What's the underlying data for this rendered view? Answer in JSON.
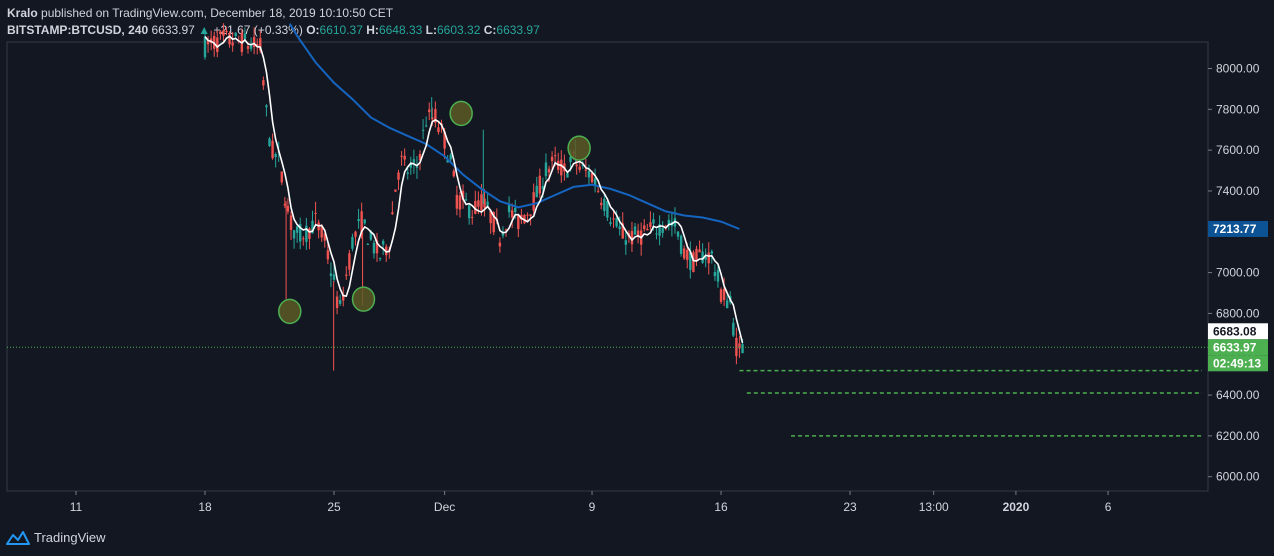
{
  "header": {
    "author": "Kralo",
    "published_text": "published on TradingView.com, December 18, 2019 10:10:50 CET",
    "symbol": "BITSTAMP:BTCUSD, 240",
    "last": "6633.97",
    "change_arrow": "▲",
    "change": "+21.67 (+0.33%)",
    "o_label": "O:",
    "o_value": "6610.37",
    "h_label": "H:",
    "h_value": "6648.33",
    "l_label": "L:",
    "l_value": "6603.32",
    "c_label": "C:",
    "c_value": "6633.97"
  },
  "footer": {
    "brand": "TradingView"
  },
  "colors": {
    "background": "#131722",
    "up": "#26a69a",
    "down": "#ef5350",
    "ma_fast": "#ffffff",
    "ma_slow": "#1565c0",
    "marker": "#4caf50",
    "last_price_bg": "#4caf50",
    "ma_badge_bg": "#0b5394"
  },
  "chart_data": {
    "type": "candlestick",
    "interval": "240",
    "ylim": [
      5950,
      8220
    ],
    "y_ticks": [
      "6000.00",
      "6200.00",
      "6400.00",
      "6600.00",
      "6800.00",
      "7000.00",
      "7200.00",
      "7400.00",
      "7600.00",
      "7800.00",
      "8000.00"
    ],
    "x_labels": [
      {
        "label": "11",
        "day": 3
      },
      {
        "label": "18",
        "day": 10
      },
      {
        "label": "25",
        "day": 17
      },
      {
        "label": "Dec",
        "day": 23
      },
      {
        "label": "9",
        "day": 31
      },
      {
        "label": "16",
        "day": 38
      },
      {
        "label": "23",
        "day": 45
      },
      {
        "label": "13:00",
        "day": 49.54
      },
      {
        "label": "2020",
        "day": 54
      },
      {
        "label": "6",
        "day": 59
      }
    ],
    "price_badges": [
      {
        "id": "ma-fast",
        "text": "6683.08",
        "price": 6683.08
      },
      {
        "id": "last",
        "text": "6633.97",
        "price": 6633.97
      },
      {
        "id": "countdown",
        "text": "02:49:13"
      },
      {
        "id": "ma-slow",
        "text": "7213.77",
        "price": 7213.77
      }
    ],
    "last_price": 6633.97,
    "anchors": [
      {
        "day": 10.0,
        "price": 8110
      },
      {
        "day": 11.0,
        "price": 8140
      },
      {
        "day": 12.0,
        "price": 8130
      },
      {
        "day": 13.0,
        "price": 8100
      },
      {
        "day": 13.3,
        "price": 7800
      },
      {
        "day": 13.6,
        "price": 7600
      },
      {
        "day": 14.0,
        "price": 7550
      },
      {
        "day": 14.3,
        "price": 7400
      },
      {
        "day": 14.6,
        "price": 7250
      },
      {
        "day": 15.0,
        "price": 7180
      },
      {
        "day": 15.5,
        "price": 7200
      },
      {
        "day": 16.0,
        "price": 7250
      },
      {
        "day": 16.5,
        "price": 7150
      },
      {
        "day": 17.0,
        "price": 6950
      },
      {
        "day": 17.3,
        "price": 6800
      },
      {
        "day": 17.6,
        "price": 6950
      },
      {
        "day": 18.0,
        "price": 7150
      },
      {
        "day": 18.5,
        "price": 7250
      },
      {
        "day": 19.0,
        "price": 7150
      },
      {
        "day": 19.5,
        "price": 7080
      },
      {
        "day": 20.0,
        "price": 7150
      },
      {
        "day": 20.3,
        "price": 7400
      },
      {
        "day": 20.6,
        "price": 7550
      },
      {
        "day": 21.0,
        "price": 7500
      },
      {
        "day": 21.5,
        "price": 7520
      },
      {
        "day": 22.0,
        "price": 7750
      },
      {
        "day": 22.5,
        "price": 7760
      },
      {
        "day": 23.0,
        "price": 7650
      },
      {
        "day": 23.3,
        "price": 7550
      },
      {
        "day": 23.7,
        "price": 7350
      },
      {
        "day": 24.0,
        "price": 7350
      },
      {
        "day": 24.5,
        "price": 7300
      },
      {
        "day": 25.0,
        "price": 7350
      },
      {
        "day": 25.5,
        "price": 7280
      },
      {
        "day": 26.0,
        "price": 7180
      },
      {
        "day": 26.5,
        "price": 7300
      },
      {
        "day": 27.0,
        "price": 7250
      },
      {
        "day": 27.5,
        "price": 7300
      },
      {
        "day": 28.0,
        "price": 7380
      },
      {
        "day": 28.5,
        "price": 7500
      },
      {
        "day": 29.0,
        "price": 7540
      },
      {
        "day": 29.5,
        "price": 7500
      },
      {
        "day": 30.0,
        "price": 7550
      },
      {
        "day": 30.5,
        "price": 7500
      },
      {
        "day": 31.0,
        "price": 7480
      },
      {
        "day": 31.5,
        "price": 7380
      },
      {
        "day": 32.0,
        "price": 7280
      },
      {
        "day": 32.5,
        "price": 7200
      },
      {
        "day": 33.0,
        "price": 7170
      },
      {
        "day": 33.5,
        "price": 7180
      },
      {
        "day": 34.0,
        "price": 7200
      },
      {
        "day": 34.5,
        "price": 7220
      },
      {
        "day": 35.0,
        "price": 7250
      },
      {
        "day": 35.5,
        "price": 7230
      },
      {
        "day": 36.0,
        "price": 7100
      },
      {
        "day": 36.5,
        "price": 7050
      },
      {
        "day": 37.0,
        "price": 7090
      },
      {
        "day": 37.5,
        "price": 7080
      },
      {
        "day": 38.0,
        "price": 6900
      },
      {
        "day": 38.5,
        "price": 6850
      },
      {
        "day": 38.8,
        "price": 6650
      },
      {
        "day": 39.0,
        "price": 6610
      },
      {
        "day": 39.2,
        "price": 6633.97
      }
    ],
    "wicks": [
      {
        "day": 14.4,
        "low": 6870
      },
      {
        "day": 16.98,
        "low": 6520
      },
      {
        "day": 18.55,
        "low": 6840
      },
      {
        "day": 22.3,
        "high": 7860
      },
      {
        "day": 25.1,
        "high": 7700
      },
      {
        "day": 30.1,
        "high": 7650
      }
    ],
    "ma_slow": [
      {
        "day": 14.6,
        "price": 8220
      },
      {
        "day": 15.0,
        "price": 8160
      },
      {
        "day": 16.0,
        "price": 8030
      },
      {
        "day": 17.0,
        "price": 7930
      },
      {
        "day": 18.0,
        "price": 7850
      },
      {
        "day": 19.0,
        "price": 7760
      },
      {
        "day": 20.0,
        "price": 7710
      },
      {
        "day": 21.0,
        "price": 7670
      },
      {
        "day": 22.0,
        "price": 7630
      },
      {
        "day": 23.0,
        "price": 7570
      },
      {
        "day": 24.0,
        "price": 7480
      },
      {
        "day": 25.0,
        "price": 7410
      },
      {
        "day": 26.0,
        "price": 7350
      },
      {
        "day": 27.0,
        "price": 7320
      },
      {
        "day": 28.0,
        "price": 7340
      },
      {
        "day": 29.0,
        "price": 7380
      },
      {
        "day": 30.0,
        "price": 7420
      },
      {
        "day": 31.0,
        "price": 7430
      },
      {
        "day": 32.0,
        "price": 7410
      },
      {
        "day": 33.0,
        "price": 7380
      },
      {
        "day": 34.0,
        "price": 7340
      },
      {
        "day": 35.0,
        "price": 7300
      },
      {
        "day": 36.0,
        "price": 7280
      },
      {
        "day": 37.0,
        "price": 7270
      },
      {
        "day": 38.0,
        "price": 7250
      },
      {
        "day": 39.0,
        "price": 7213.77
      }
    ],
    "markers": [
      {
        "day": 14.6,
        "price": 6810
      },
      {
        "day": 18.6,
        "price": 6870
      },
      {
        "day": 23.9,
        "price": 7780
      },
      {
        "day": 30.3,
        "price": 7610
      }
    ],
    "support_levels": [
      {
        "price": 6520,
        "from_day": 39.0
      },
      {
        "price": 6410,
        "from_day": 39.4
      },
      {
        "price": 6200,
        "from_day": 41.8
      }
    ]
  }
}
